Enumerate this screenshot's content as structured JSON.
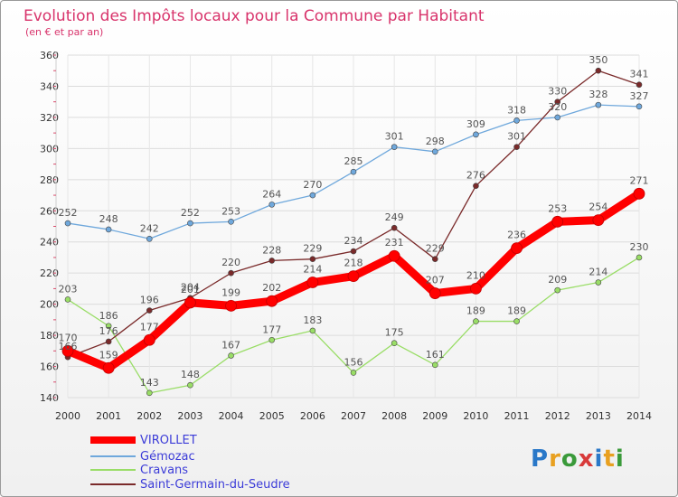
{
  "chart_data": {
    "type": "line",
    "title": "Evolution des Impôts locaux pour la Commune par Habitant",
    "subtitle": "(en € et par an)",
    "xlabel": "",
    "ylabel": "",
    "x": [
      "2000",
      "2001",
      "2002",
      "2003",
      "2004",
      "2005",
      "2006",
      "2007",
      "2008",
      "2009",
      "2010",
      "2011",
      "2012",
      "2013",
      "2014"
    ],
    "yticks": [
      140,
      160,
      180,
      200,
      220,
      240,
      260,
      280,
      300,
      320,
      340,
      360
    ],
    "ylim": [
      140,
      360
    ],
    "grid": true,
    "legend_position": "bottom-left",
    "series": [
      {
        "name": "VIROLLET",
        "color": "#ff0000",
        "values": [
          170,
          159,
          177,
          201,
          199,
          202,
          214,
          218,
          231,
          207,
          210,
          236,
          253,
          254,
          271
        ]
      },
      {
        "name": "Gémozac",
        "color": "#6fa8dc",
        "values": [
          252,
          248,
          242,
          252,
          253,
          264,
          270,
          285,
          301,
          298,
          309,
          318,
          320,
          328,
          327
        ]
      },
      {
        "name": "Cravans",
        "color": "#99dd66",
        "values": [
          203,
          186,
          143,
          148,
          167,
          177,
          183,
          156,
          175,
          161,
          189,
          189,
          209,
          214,
          230
        ]
      },
      {
        "name": "Saint-Germain-du-Seudre",
        "color": "#7a2a2a",
        "values": [
          166,
          176,
          196,
          204,
          220,
          228,
          229,
          234,
          249,
          229,
          276,
          301,
          330,
          350,
          341
        ]
      }
    ]
  },
  "branding": {
    "logo_text": "Proxiti"
  }
}
